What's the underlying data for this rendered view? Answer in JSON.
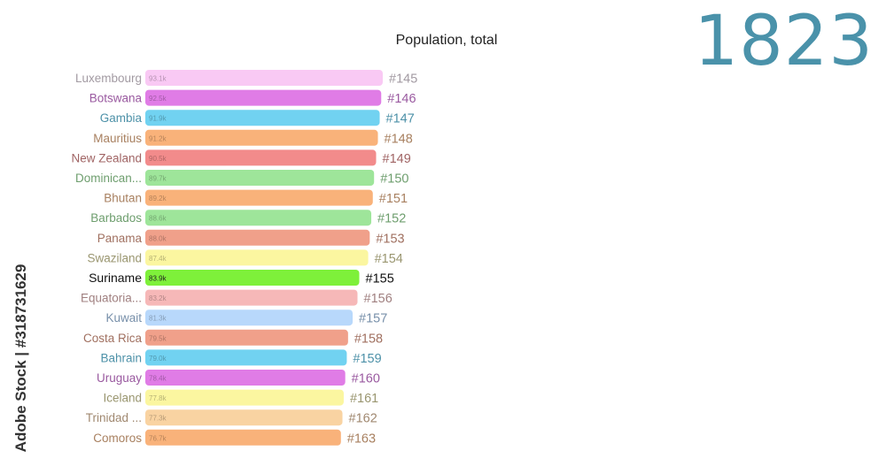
{
  "chart_data": {
    "type": "bar",
    "orientation": "horizontal",
    "title": "Population, total",
    "year": "1823",
    "xlabel": "",
    "ylabel": "",
    "grid": false,
    "legend": "none",
    "bars": [
      {
        "country": "Luxembourg",
        "value": 93100,
        "label": "93.1k",
        "rank": "#145",
        "color": "#f9c9f4",
        "text_color": "#a29aa2"
      },
      {
        "country": "Botswana",
        "value": 92500,
        "label": "92.5k",
        "rank": "#146",
        "color": "#e07ce6",
        "text_color": "#9a5aa0"
      },
      {
        "country": "Gambia",
        "value": 91900,
        "label": "91.9k",
        "rank": "#147",
        "color": "#71d2f1",
        "text_color": "#4d91a8"
      },
      {
        "country": "Mauritius",
        "value": 91200,
        "label": "91.2k",
        "rank": "#148",
        "color": "#f9b27a",
        "text_color": "#a88060"
      },
      {
        "country": "New Zealand",
        "value": 90500,
        "label": "90.5k",
        "rank": "#149",
        "color": "#f28b8b",
        "text_color": "#a06464"
      },
      {
        "country": "Dominican...",
        "value": 89700,
        "label": "89.7k",
        "rank": "#150",
        "color": "#9ee59a",
        "text_color": "#6e9e6e"
      },
      {
        "country": "Bhutan",
        "value": 89200,
        "label": "89.2k",
        "rank": "#151",
        "color": "#f9b27a",
        "text_color": "#a88060"
      },
      {
        "country": "Barbados",
        "value": 88600,
        "label": "88.6k",
        "rank": "#152",
        "color": "#9ee59a",
        "text_color": "#6e9e6e"
      },
      {
        "country": "Panama",
        "value": 88000,
        "label": "88.0k",
        "rank": "#153",
        "color": "#f0a08a",
        "text_color": "#a07060"
      },
      {
        "country": "Swaziland",
        "value": 87400,
        "label": "87.4k",
        "rank": "#154",
        "color": "#fbf6a0",
        "text_color": "#9a9670"
      },
      {
        "country": "Suriname",
        "value": 83900,
        "label": "83.9k",
        "rank": "#155",
        "color": "#7ef03a",
        "text_color": "#111111",
        "highlight": true
      },
      {
        "country": "Equatoria...",
        "value": 83200,
        "label": "83.2k",
        "rank": "#156",
        "color": "#f6b8b8",
        "text_color": "#a08080"
      },
      {
        "country": "Kuwait",
        "value": 81300,
        "label": "81.3k",
        "rank": "#157",
        "color": "#b8d8fb",
        "text_color": "#7890aa"
      },
      {
        "country": "Costa Rica",
        "value": 79500,
        "label": "79.5k",
        "rank": "#158",
        "color": "#f0a08a",
        "text_color": "#a07060"
      },
      {
        "country": "Bahrain",
        "value": 79000,
        "label": "79.0k",
        "rank": "#159",
        "color": "#71d2f1",
        "text_color": "#4d91a8"
      },
      {
        "country": "Uruguay",
        "value": 78400,
        "label": "78.4k",
        "rank": "#160",
        "color": "#e07ce6",
        "text_color": "#9a5aa0"
      },
      {
        "country": "Iceland",
        "value": 77800,
        "label": "77.8k",
        "rank": "#161",
        "color": "#fbf6a0",
        "text_color": "#9a9670"
      },
      {
        "country": "Trinidad ...",
        "value": 77300,
        "label": "77.3k",
        "rank": "#162",
        "color": "#f9d3a2",
        "text_color": "#a08870"
      },
      {
        "country": "Comoros",
        "value": 76700,
        "label": "76.7k",
        "rank": "#163",
        "color": "#f9b27a",
        "text_color": "#a88060"
      }
    ]
  },
  "watermark": {
    "side_text": "Adobe Stock | #318731629"
  }
}
